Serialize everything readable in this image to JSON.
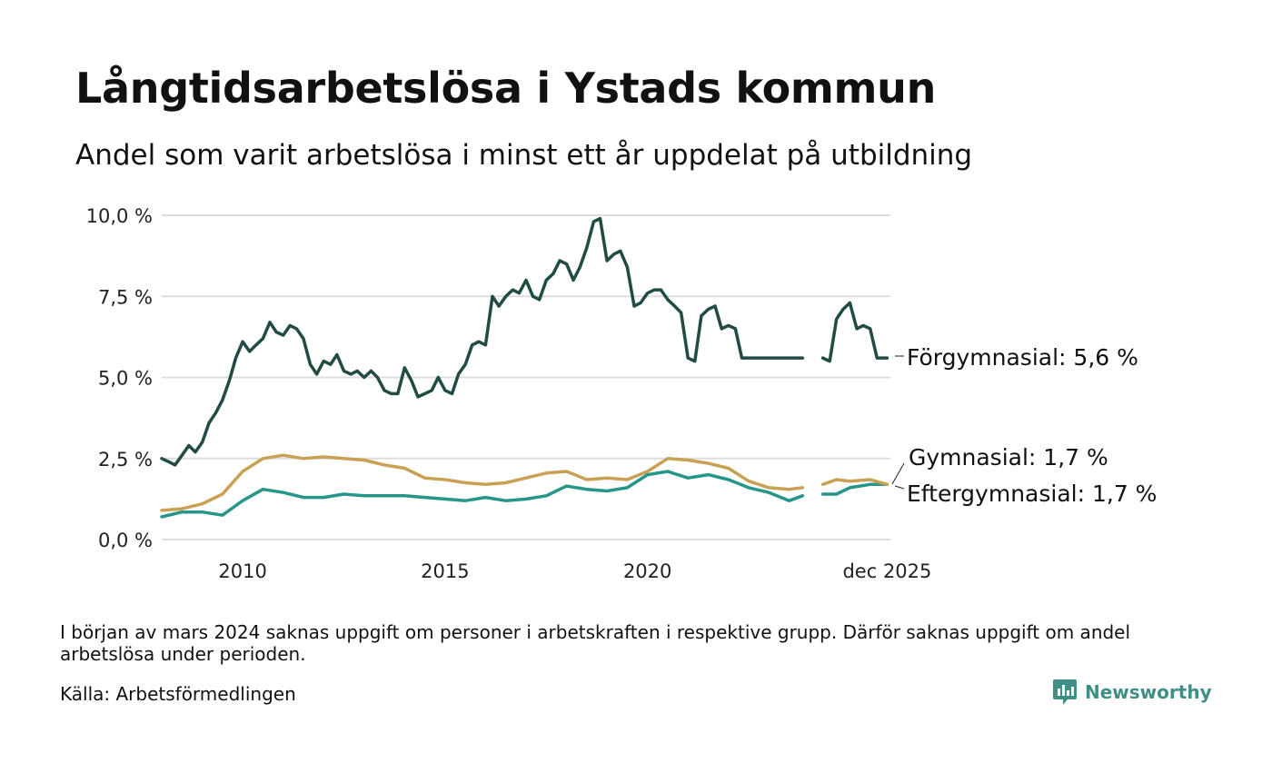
{
  "title": "Långtidsarbetslösa i Ystads kommun",
  "subtitle": "Andel som varit arbetslösa i minst ett år uppdelat på utbildning",
  "note": "I början av mars 2024 saknas uppgift om personer i arbetskraften i respektive grupp. Därför saknas uppgift om andel arbetslösa under perioden.",
  "source": "Källa: Arbetsförmedlingen",
  "brand": {
    "name": "Newsworthy",
    "icon": "newsworthy-logo-icon",
    "color": "#3f8f87"
  },
  "chart_data": {
    "type": "line",
    "title": "Långtidsarbetslösa i Ystads kommun",
    "subtitle": "Andel som varit arbetslösa i minst ett år uppdelat på utbildning",
    "xlabel": "",
    "ylabel": "",
    "x_range": [
      2008.0,
      2026.0
    ],
    "ylim": [
      0,
      10
    ],
    "y_ticks": [
      0,
      2.5,
      5,
      7.5,
      10
    ],
    "y_tick_labels": [
      "0,0 %",
      "2,5 %",
      "5,0 %",
      "7,5 %",
      "10,0 %"
    ],
    "x_ticks": [
      2010,
      2015,
      2020,
      2025.92
    ],
    "x_tick_labels": [
      "2010",
      "2015",
      "2020",
      "dec 2025"
    ],
    "grid": "horizontal",
    "gap": [
      2023.9,
      2024.3
    ],
    "series": [
      {
        "name": "Förgymnasial",
        "end_label": "Förgymnasial: 5,6 %",
        "color": "#224b45",
        "x": [
          2008.0,
          2008.17,
          2008.33,
          2008.5,
          2008.67,
          2008.83,
          2009.0,
          2009.17,
          2009.33,
          2009.5,
          2009.67,
          2009.83,
          2010.0,
          2010.17,
          2010.33,
          2010.5,
          2010.67,
          2010.83,
          2011.0,
          2011.17,
          2011.33,
          2011.5,
          2011.67,
          2011.83,
          2012.0,
          2012.17,
          2012.33,
          2012.5,
          2012.67,
          2012.83,
          2013.0,
          2013.17,
          2013.33,
          2013.5,
          2013.67,
          2013.83,
          2014.0,
          2014.17,
          2014.33,
          2014.5,
          2014.67,
          2014.83,
          2015.0,
          2015.17,
          2015.33,
          2015.5,
          2015.67,
          2015.83,
          2016.0,
          2016.17,
          2016.33,
          2016.5,
          2016.67,
          2016.83,
          2017.0,
          2017.17,
          2017.33,
          2017.5,
          2017.67,
          2017.83,
          2018.0,
          2018.17,
          2018.33,
          2018.5,
          2018.67,
          2018.83,
          2019.0,
          2019.17,
          2019.33,
          2019.5,
          2019.67,
          2019.83,
          2020.0,
          2020.17,
          2020.33,
          2020.5,
          2020.67,
          2020.83,
          2021.0,
          2021.17,
          2021.33,
          2021.5,
          2021.67,
          2021.83,
          2022.0,
          2022.17,
          2022.33,
          2022.5,
          2022.67,
          2022.83,
          2023.0,
          2023.17,
          2023.33,
          2023.5,
          2023.67,
          2023.83,
          null,
          2024.33,
          2024.5,
          2024.67,
          2024.83,
          2025.0,
          2025.17,
          2025.33,
          2025.5,
          2025.67,
          2025.83,
          2025.92
        ],
        "values": [
          2.5,
          2.4,
          2.3,
          2.6,
          2.9,
          2.7,
          3.0,
          3.6,
          3.9,
          4.3,
          4.9,
          5.6,
          6.1,
          5.8,
          6.0,
          6.2,
          6.7,
          6.4,
          6.3,
          6.6,
          6.5,
          6.2,
          5.4,
          5.1,
          5.5,
          5.4,
          5.7,
          5.2,
          5.1,
          5.2,
          5.0,
          5.2,
          5.0,
          4.6,
          4.5,
          4.5,
          5.3,
          4.9,
          4.4,
          4.5,
          4.6,
          5.0,
          4.6,
          4.5,
          5.1,
          5.4,
          6.0,
          6.1,
          6.0,
          7.5,
          7.2,
          7.5,
          7.7,
          7.6,
          8.0,
          7.5,
          7.4,
          8.0,
          8.2,
          8.6,
          8.5,
          8.0,
          8.4,
          9.0,
          9.8,
          9.9,
          8.6,
          8.8,
          8.9,
          8.4,
          7.2,
          7.3,
          7.6,
          7.7,
          7.7,
          7.4,
          7.2,
          7.0,
          5.6,
          5.5,
          6.9,
          7.1,
          7.2,
          6.5,
          6.6,
          6.5,
          5.6,
          5.6,
          5.6,
          5.6,
          5.6,
          5.6,
          5.6,
          5.6,
          5.6,
          5.6,
          null,
          5.6,
          5.5,
          6.8,
          7.1,
          7.3,
          6.5,
          6.6,
          6.5,
          5.6,
          5.6,
          5.6
        ]
      },
      {
        "name": "Gymnasial",
        "end_label": "Gymnasial: 1,7 %",
        "color": "#c9a155",
        "x": [
          2008.0,
          2008.5,
          2009.0,
          2009.5,
          2010.0,
          2010.5,
          2011.0,
          2011.5,
          2012.0,
          2012.5,
          2013.0,
          2013.5,
          2014.0,
          2014.5,
          2015.0,
          2015.5,
          2016.0,
          2016.5,
          2017.0,
          2017.5,
          2018.0,
          2018.5,
          2019.0,
          2019.5,
          2020.0,
          2020.5,
          2021.0,
          2021.5,
          2022.0,
          2022.5,
          2023.0,
          2023.5,
          2023.83,
          null,
          2024.33,
          2024.67,
          2025.0,
          2025.5,
          2025.92
        ],
        "values": [
          0.9,
          0.95,
          1.1,
          1.4,
          2.1,
          2.5,
          2.6,
          2.5,
          2.55,
          2.5,
          2.45,
          2.3,
          2.2,
          1.9,
          1.85,
          1.75,
          1.7,
          1.75,
          1.9,
          2.05,
          2.1,
          1.85,
          1.9,
          1.85,
          2.1,
          2.5,
          2.45,
          2.35,
          2.2,
          1.8,
          1.6,
          1.55,
          1.6,
          null,
          1.7,
          1.85,
          1.8,
          1.85,
          1.7
        ]
      },
      {
        "name": "Eftergymnasial",
        "end_label": "Eftergymnasial: 1,7 %",
        "color": "#26958a",
        "x": [
          2008.0,
          2008.5,
          2009.0,
          2009.5,
          2010.0,
          2010.5,
          2011.0,
          2011.5,
          2012.0,
          2012.5,
          2013.0,
          2013.5,
          2014.0,
          2014.5,
          2015.0,
          2015.5,
          2016.0,
          2016.5,
          2017.0,
          2017.5,
          2018.0,
          2018.5,
          2019.0,
          2019.5,
          2020.0,
          2020.5,
          2021.0,
          2021.5,
          2022.0,
          2022.5,
          2023.0,
          2023.5,
          2023.83,
          null,
          2024.33,
          2024.67,
          2025.0,
          2025.5,
          2025.92
        ],
        "values": [
          0.7,
          0.85,
          0.85,
          0.75,
          1.2,
          1.55,
          1.45,
          1.3,
          1.3,
          1.4,
          1.35,
          1.35,
          1.35,
          1.3,
          1.25,
          1.2,
          1.3,
          1.2,
          1.25,
          1.35,
          1.65,
          1.55,
          1.5,
          1.6,
          2.0,
          2.1,
          1.9,
          2.0,
          1.85,
          1.6,
          1.45,
          1.2,
          1.35,
          null,
          1.4,
          1.4,
          1.6,
          1.7,
          1.7
        ]
      }
    ]
  }
}
